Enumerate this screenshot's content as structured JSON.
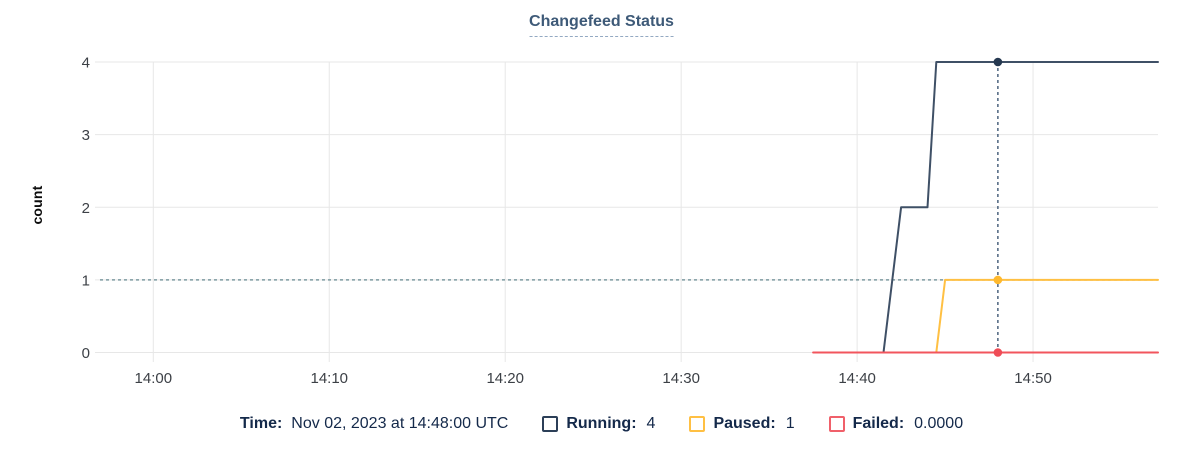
{
  "chart_data": {
    "type": "line",
    "title": "Changefeed Status",
    "xlabel": "",
    "ylabel": "count",
    "ylim": [
      0,
      4
    ],
    "y_ticks": [
      0,
      1,
      2,
      3,
      4
    ],
    "x_ticks": [
      "14:00",
      "14:10",
      "14:20",
      "14:30",
      "14:40",
      "14:50"
    ],
    "grid": true,
    "legend_position": "bottom",
    "series": [
      {
        "name": "Running",
        "color": "#3f5066",
        "dot_color": "#253850",
        "values": [
          [
            "14:41:30",
            0
          ],
          [
            "14:42:30",
            2
          ],
          [
            "14:44:00",
            2
          ],
          [
            "14:44:30",
            4
          ],
          [
            "14:57:06",
            4
          ]
        ]
      },
      {
        "name": "Paused",
        "color": "#ffc043",
        "dot_color": "#ffb92e",
        "values": [
          [
            "14:44:30",
            0
          ],
          [
            "14:45:00",
            1
          ],
          [
            "14:57:06",
            1
          ]
        ]
      },
      {
        "name": "Failed",
        "color": "#f2555d",
        "dot_color": "#ef4c56",
        "values": [
          [
            "14:37:30",
            0
          ],
          [
            "14:57:06",
            0
          ]
        ]
      }
    ],
    "crosshair": {
      "time": "14:48:00",
      "color": "#3f5875",
      "h_guide_value": 1,
      "h_guide_color": "#7d9ba1",
      "points": [
        {
          "series": "Running",
          "value": 4
        },
        {
          "series": "Paused",
          "value": 1
        },
        {
          "series": "Failed",
          "value": 0
        }
      ]
    }
  },
  "legend": {
    "time_label": "Time:",
    "time_value": "Nov 02, 2023 at 14:48:00 UTC",
    "entries": [
      {
        "label": "Running:",
        "value": "4",
        "swatch_color": "#2c3f58"
      },
      {
        "label": "Paused:",
        "value": "1",
        "swatch_color": "#ffc043"
      },
      {
        "label": "Failed:",
        "value": "0.0000",
        "swatch_color": "#f0606a"
      }
    ]
  }
}
